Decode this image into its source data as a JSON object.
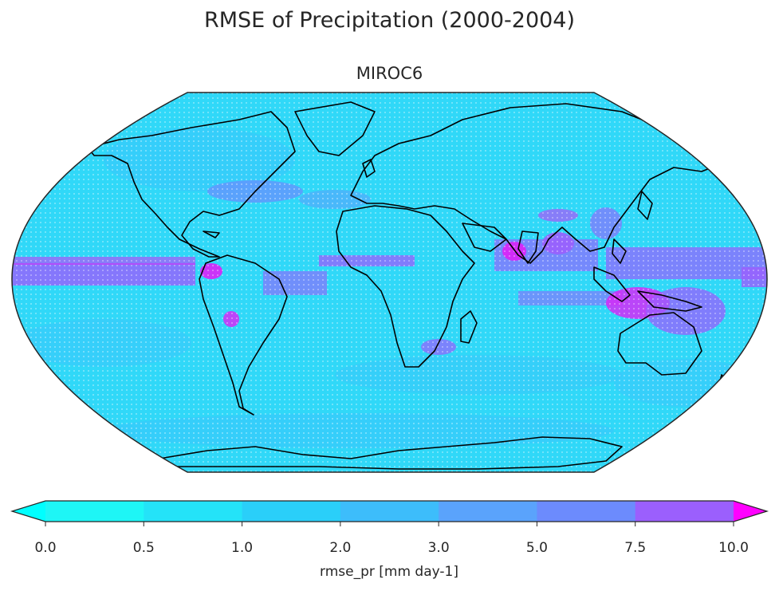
{
  "figure": {
    "title": "RMSE of Precipitation (2000-2004)",
    "panel_title": "MIROC6"
  },
  "colorbar": {
    "label": "rmse_pr [mm day-1]",
    "ticks": [
      "0.0",
      "0.5",
      "1.0",
      "2.0",
      "3.0",
      "5.0",
      "7.5",
      "10.0"
    ],
    "levels": [
      0.0,
      0.5,
      1.0,
      2.0,
      3.0,
      5.0,
      7.5,
      10.0
    ],
    "colors": [
      "#1ef6f6",
      "#24e3f8",
      "#2acff9",
      "#3dbdfb",
      "#5aa3fc",
      "#6c8bfd",
      "#9b5ffd",
      "#dd22f7"
    ],
    "under_color": "#00ffff",
    "over_color": "#ff00ff",
    "extend": "both"
  },
  "map": {
    "projection": "Robinson",
    "variable": "rmse_pr",
    "ocean_base_color": "#30d8f8",
    "hatching": "dots over most of the field"
  }
}
